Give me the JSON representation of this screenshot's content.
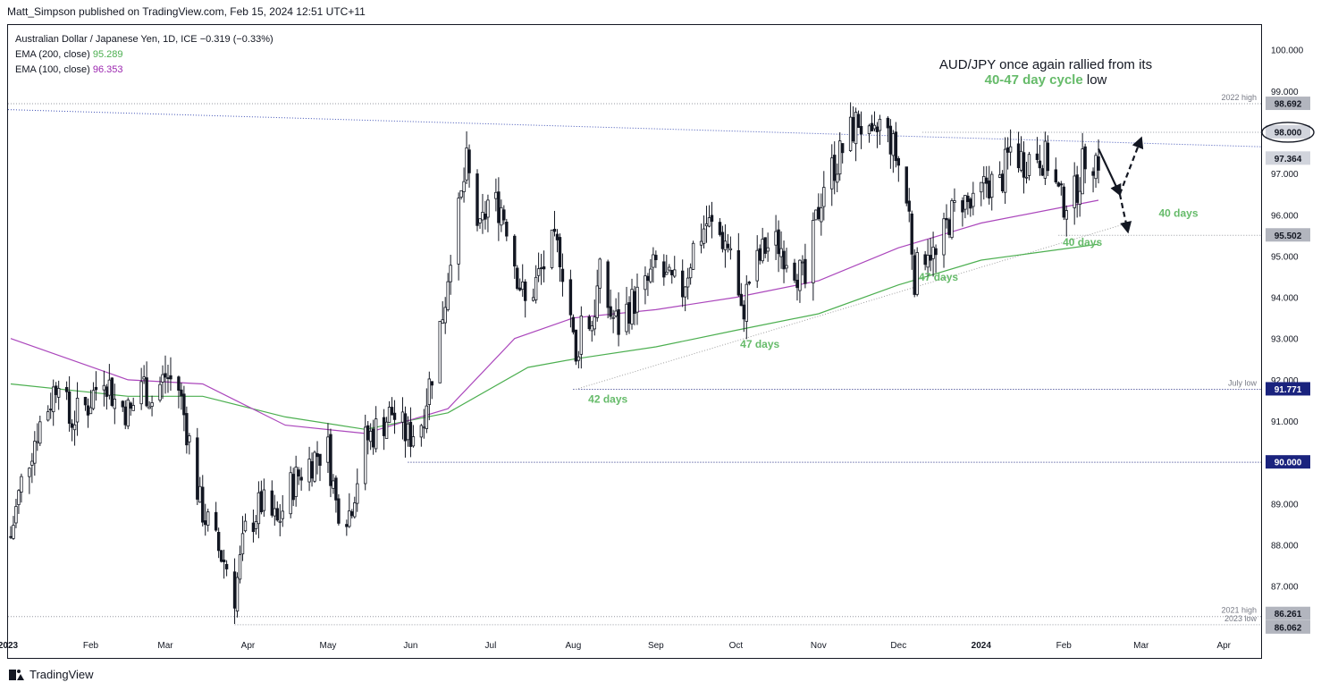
{
  "publisher_line": "Matt_Simpson published on TradingView.com, Feb 15, 2024 12:51 UTC+11",
  "legend": {
    "symbol": "Australian Dollar / Japanese Yen, 1D, ICE",
    "change": "−0.319 (−0.33%)",
    "ema200_label": "EMA (200, close)",
    "ema200_value": "95.289",
    "ema100_label": "EMA (100, close)",
    "ema100_value": "96.353"
  },
  "annotation": {
    "line1": "AUD/JPY once again rallied from its",
    "highlight": "40-47 day cycle",
    "tail": "low"
  },
  "footer": {
    "brand": "TradingView"
  },
  "colors": {
    "ema200": "#4caf50",
    "ema100": "#ab47bc",
    "cycle_label": "#66bb6a",
    "level_line": "#1a237e",
    "candle": "#131722"
  },
  "chart_data": {
    "type": "candlestick",
    "y_axis": {
      "range": [
        85.8,
        100.6
      ],
      "ticks": [
        "100.000",
        "99.000",
        "98.000",
        "97.000",
        "96.000",
        "95.000",
        "94.000",
        "93.000",
        "92.000",
        "91.000",
        "90.000",
        "89.000",
        "88.000",
        "87.000"
      ]
    },
    "x_axis": {
      "range": [
        "2023-01-01",
        "2024-04-15"
      ],
      "ticks": [
        {
          "label": "2023",
          "date": "2023-01-01",
          "bold": true
        },
        {
          "label": "Feb",
          "date": "2023-02-01"
        },
        {
          "label": "Mar",
          "date": "2023-03-01"
        },
        {
          "label": "Apr",
          "date": "2023-04-01"
        },
        {
          "label": "May",
          "date": "2023-05-01"
        },
        {
          "label": "Jun",
          "date": "2023-06-01"
        },
        {
          "label": "Jul",
          "date": "2023-07-01"
        },
        {
          "label": "Aug",
          "date": "2023-08-01"
        },
        {
          "label": "Sep",
          "date": "2023-09-01"
        },
        {
          "label": "Oct",
          "date": "2023-10-01"
        },
        {
          "label": "Nov",
          "date": "2023-11-01"
        },
        {
          "label": "Dec",
          "date": "2023-12-01"
        },
        {
          "label": "2024",
          "date": "2024-01-01",
          "bold": true
        },
        {
          "label": "Feb",
          "date": "2024-02-01"
        },
        {
          "label": "Mar",
          "date": "2024-03-01"
        },
        {
          "label": "Apr",
          "date": "2024-04-01"
        }
      ]
    },
    "price_path": [
      [
        "2023-01-02",
        88.2
      ],
      [
        "2023-01-06",
        89.5
      ],
      [
        "2023-01-12",
        90.8
      ],
      [
        "2023-01-17",
        91.5
      ],
      [
        "2023-01-20",
        92.2
      ],
      [
        "2023-01-24",
        91.0
      ],
      [
        "2023-01-31",
        91.4
      ],
      [
        "2023-02-06",
        92.2
      ],
      [
        "2023-02-10",
        91.5
      ],
      [
        "2023-02-16",
        91.2
      ],
      [
        "2023-02-20",
        92.0
      ],
      [
        "2023-02-24",
        91.5
      ],
      [
        "2023-03-01",
        92.1
      ],
      [
        "2023-03-06",
        91.8
      ],
      [
        "2023-03-10",
        90.5
      ],
      [
        "2023-03-14",
        89.0
      ],
      [
        "2023-03-20",
        88.0
      ],
      [
        "2023-03-24",
        87.5
      ],
      [
        "2023-03-27",
        86.8
      ],
      [
        "2023-03-31",
        88.3
      ],
      [
        "2023-04-06",
        89.0
      ],
      [
        "2023-04-12",
        88.5
      ],
      [
        "2023-04-17",
        89.4
      ],
      [
        "2023-04-21",
        89.8
      ],
      [
        "2023-04-27",
        90.2
      ],
      [
        "2023-05-01",
        90.3
      ],
      [
        "2023-05-04",
        89.0
      ],
      [
        "2023-05-09",
        88.8
      ],
      [
        "2023-05-15",
        90.5
      ],
      [
        "2023-05-19",
        90.8
      ],
      [
        "2023-05-25",
        91.2
      ],
      [
        "2023-05-31",
        90.6
      ],
      [
        "2023-06-05",
        91.0
      ],
      [
        "2023-06-09",
        92.2
      ],
      [
        "2023-06-14",
        94.0
      ],
      [
        "2023-06-16",
        95.2
      ],
      [
        "2023-06-19",
        96.0
      ],
      [
        "2023-06-22",
        97.2
      ],
      [
        "2023-06-27",
        95.5
      ],
      [
        "2023-06-30",
        96.3
      ],
      [
        "2023-07-05",
        96.2
      ],
      [
        "2023-07-07",
        95.8
      ],
      [
        "2023-07-11",
        94.6
      ],
      [
        "2023-07-14",
        93.8
      ],
      [
        "2023-07-19",
        94.5
      ],
      [
        "2023-07-24",
        95.2
      ],
      [
        "2023-07-27",
        95.1
      ],
      [
        "2023-07-31",
        93.6
      ],
      [
        "2023-08-02",
        92.3
      ],
      [
        "2023-08-04",
        93.5
      ],
      [
        "2023-08-08",
        93.4
      ],
      [
        "2023-08-11",
        94.5
      ],
      [
        "2023-08-15",
        93.6
      ],
      [
        "2023-08-18",
        93.3
      ],
      [
        "2023-08-22",
        93.8
      ],
      [
        "2023-08-28",
        94.2
      ],
      [
        "2023-09-01",
        94.8
      ],
      [
        "2023-09-06",
        94.3
      ],
      [
        "2023-09-11",
        94.2
      ],
      [
        "2023-09-15",
        95.2
      ],
      [
        "2023-09-20",
        95.8
      ],
      [
        "2023-09-25",
        95.5
      ],
      [
        "2023-09-29",
        95.2
      ],
      [
        "2023-10-03",
        93.5
      ],
      [
        "2023-10-06",
        94.4
      ],
      [
        "2023-10-12",
        95.2
      ],
      [
        "2023-10-17",
        95.3
      ],
      [
        "2023-10-23",
        94.8
      ],
      [
        "2023-10-27",
        94.3
      ],
      [
        "2023-10-31",
        95.8
      ],
      [
        "2023-11-03",
        96.8
      ],
      [
        "2023-11-08",
        97.3
      ],
      [
        "2023-11-13",
        98.0
      ],
      [
        "2023-11-16",
        98.3
      ],
      [
        "2023-11-21",
        97.6
      ],
      [
        "2023-11-24",
        98.2
      ],
      [
        "2023-11-28",
        97.8
      ],
      [
        "2023-12-01",
        97.2
      ],
      [
        "2023-12-05",
        96.0
      ],
      [
        "2023-12-07",
        94.5
      ],
      [
        "2023-12-12",
        95.3
      ],
      [
        "2023-12-15",
        94.9
      ],
      [
        "2023-12-20",
        95.9
      ],
      [
        "2023-12-25",
        96.4
      ],
      [
        "2023-12-29",
        96.1
      ],
      [
        "2024-01-03",
        96.8
      ],
      [
        "2024-01-08",
        96.7
      ],
      [
        "2024-01-12",
        97.6
      ],
      [
        "2024-01-17",
        97.3
      ],
      [
        "2024-01-22",
        97.5
      ],
      [
        "2024-01-26",
        97.3
      ],
      [
        "2024-01-31",
        96.3
      ],
      [
        "2024-02-05",
        96.5
      ],
      [
        "2024-02-09",
        97.4
      ],
      [
        "2024-02-14",
        97.36
      ]
    ],
    "ema200": [
      [
        "2023-01-02",
        91.9
      ],
      [
        "2023-02-15",
        91.6
      ],
      [
        "2023-03-15",
        91.6
      ],
      [
        "2023-04-15",
        91.1
      ],
      [
        "2023-05-15",
        90.8
      ],
      [
        "2023-06-15",
        91.2
      ],
      [
        "2023-07-15",
        92.3
      ],
      [
        "2023-08-01",
        92.5
      ],
      [
        "2023-09-01",
        92.8
      ],
      [
        "2023-10-01",
        93.2
      ],
      [
        "2023-11-01",
        93.6
      ],
      [
        "2023-12-01",
        94.3
      ],
      [
        "2024-01-01",
        94.9
      ],
      [
        "2024-02-14",
        95.289
      ]
    ],
    "ema100": [
      [
        "2023-01-02",
        93.0
      ],
      [
        "2023-02-15",
        92.0
      ],
      [
        "2023-03-15",
        91.9
      ],
      [
        "2023-04-15",
        90.9
      ],
      [
        "2023-05-15",
        90.7
      ],
      [
        "2023-06-15",
        91.3
      ],
      [
        "2023-07-10",
        93.0
      ],
      [
        "2023-08-01",
        93.5
      ],
      [
        "2023-09-01",
        93.7
      ],
      [
        "2023-10-01",
        94.0
      ],
      [
        "2023-11-01",
        94.4
      ],
      [
        "2023-12-01",
        95.2
      ],
      [
        "2024-01-01",
        95.8
      ],
      [
        "2024-02-14",
        96.353
      ]
    ],
    "horizontal_levels": [
      {
        "label": "2022 high",
        "value": 98.692,
        "badge": "98.692",
        "badge_style": "grey",
        "start": "2023-01-01"
      },
      {
        "label": "",
        "value": 98.0,
        "badge": "98.000",
        "badge_style": "circled",
        "start": "2023-12-10"
      },
      {
        "label": "",
        "value": 97.364,
        "badge": "97.364",
        "badge_style": "grey-last",
        "start": null
      },
      {
        "label": "",
        "value": 95.502,
        "badge": "95.502",
        "badge_style": "grey",
        "start": "2024-01-30"
      },
      {
        "label": "July low",
        "value": 91.771,
        "badge": "91.771",
        "badge_style": "blue",
        "start": "2023-08-01"
      },
      {
        "label": "",
        "value": 90.0,
        "badge": "90.000",
        "badge_style": "blue",
        "start": "2023-05-31"
      },
      {
        "label": "2021 high",
        "value": 86.261,
        "badge": "86.261",
        "badge_style": "grey",
        "start": "2023-01-01"
      },
      {
        "label": "2023 low",
        "value": 86.062,
        "badge": "86.062",
        "badge_style": "grey",
        "start": "2023-03-27"
      }
    ],
    "trendlines": [
      {
        "from": [
          "2023-01-01",
          98.55
        ],
        "to": [
          "2024-04-15",
          97.65
        ],
        "style": "dotted-blue"
      },
      {
        "from": [
          "2023-08-02",
          91.77
        ],
        "to": [
          "2024-02-25",
          95.8
        ],
        "style": "dotted-grey"
      }
    ],
    "arrows": [
      {
        "from": [
          "2024-02-14",
          97.6
        ],
        "to": [
          "2024-02-22",
          96.5
        ],
        "style": "solid"
      },
      {
        "from": [
          "2024-02-22",
          96.5
        ],
        "to": [
          "2024-03-01",
          97.85
        ],
        "style": "dashed"
      },
      {
        "from": [
          "2024-02-22",
          96.5
        ],
        "to": [
          "2024-02-25",
          95.6
        ],
        "style": "dashed"
      }
    ],
    "cycle_labels": [
      {
        "text": "42 days",
        "at": [
          "2023-08-14",
          91.45
        ]
      },
      {
        "text": "47 days",
        "at": [
          "2023-10-10",
          92.78
        ]
      },
      {
        "text": "47 days",
        "at": [
          "2023-12-16",
          94.4
        ]
      },
      {
        "text": "40 days",
        "at": [
          "2024-02-08",
          95.25
        ]
      },
      {
        "text": "40 days",
        "at": [
          "2024-03-15",
          95.95
        ]
      }
    ]
  }
}
